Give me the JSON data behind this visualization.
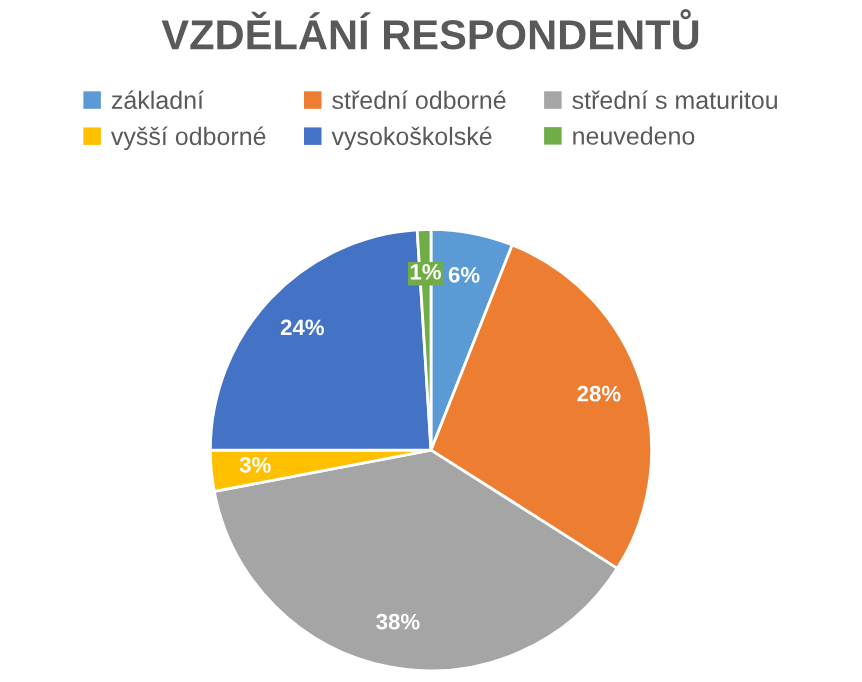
{
  "chart_data": {
    "type": "pie",
    "title": "VZDĚLÁNÍ RESPONDENTŮ",
    "categories": [
      "základní",
      "střední odborné",
      "střední s maturitou",
      "vyšší odborné",
      "vysokoškolské",
      "neuvedeno"
    ],
    "values": [
      6,
      28,
      38,
      3,
      24,
      1
    ],
    "colors": [
      "#5b9bd5",
      "#ed7d31",
      "#a5a5a5",
      "#ffc000",
      "#4472c4",
      "#70ad47"
    ],
    "value_labels": [
      "6%",
      "28%",
      "38%",
      "3%",
      "24%",
      "1%"
    ],
    "legend": "top"
  }
}
